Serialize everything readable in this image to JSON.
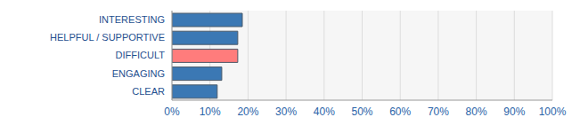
{
  "chart_data": {
    "type": "bar",
    "orientation": "horizontal",
    "categories": [
      "INTERESTING",
      "HELPFUL / SUPPORTIVE",
      "DIFFICULT",
      "ENGAGING",
      "CLEAR"
    ],
    "values": [
      18.5,
      17.3,
      17.3,
      13.1,
      11.9
    ],
    "colors": [
      "#3b78b4",
      "#3b78b4",
      "#ff7c7c",
      "#3b78b4",
      "#3b78b4"
    ],
    "xlim": [
      0,
      100
    ],
    "xticks": [
      {
        "value": 0,
        "label": "0%"
      },
      {
        "value": 10,
        "label": "10%"
      },
      {
        "value": 20,
        "label": "20%"
      },
      {
        "value": 30,
        "label": "30%"
      },
      {
        "value": 40,
        "label": "40%"
      },
      {
        "value": 50,
        "label": "50%"
      },
      {
        "value": 60,
        "label": "60%"
      },
      {
        "value": 70,
        "label": "70%"
      },
      {
        "value": 80,
        "label": "80%"
      },
      {
        "value": 90,
        "label": "90%"
      },
      {
        "value": 100,
        "label": "100%"
      }
    ],
    "grid": true
  }
}
